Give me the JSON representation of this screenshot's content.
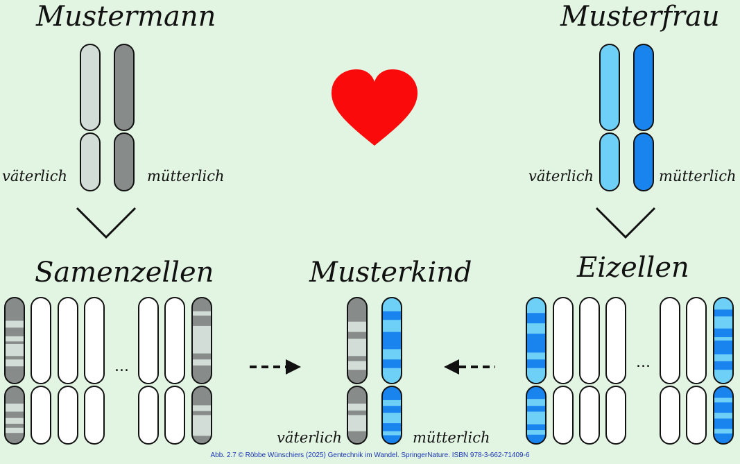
{
  "titles": {
    "father": "Mustermann",
    "mother": "Musterfrau",
    "sperm": "Samenzellen",
    "child": "Musterkind",
    "eggs": "Eizellen"
  },
  "labels": {
    "paternal": "väterlich",
    "maternal": "mütterlich"
  },
  "ellipsis": "...",
  "credit": "Abb. 2.7 © Röbbe Wünschiers (2025) Gentechnik im Wandel. SpringerNature. ISBN 978-3-662-71409-6",
  "colors": {
    "background": "#e2f5e2",
    "paternal_light": "#d3ddd8",
    "paternal_dark": "#878c8a",
    "maternal_light": "#6fd0f7",
    "maternal_dark": "#1a84ee",
    "heart": "#fa0a0a"
  },
  "icons": [
    "heart-icon",
    "arrow-right-icon",
    "arrow-left-icon",
    "chevron-down-icon"
  ]
}
